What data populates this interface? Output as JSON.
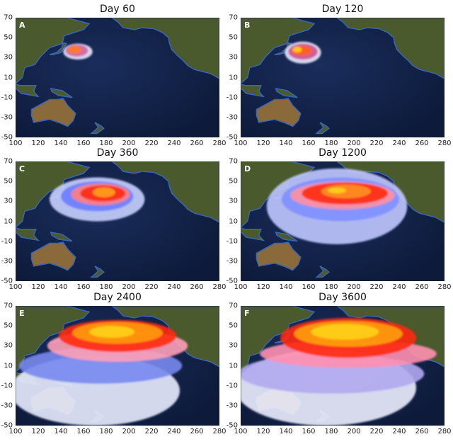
{
  "figure": {
    "panels": [
      {
        "letter": "A",
        "title": "Day 60"
      },
      {
        "letter": "B",
        "title": "Day 120"
      },
      {
        "letter": "C",
        "title": "Day 360"
      },
      {
        "letter": "D",
        "title": "Day 1200"
      },
      {
        "letter": "E",
        "title": "Day 2400"
      },
      {
        "letter": "F",
        "title": "Day 3600"
      }
    ],
    "x_ticks": [
      "100",
      "120",
      "140",
      "160",
      "180",
      "200",
      "220",
      "240",
      "260",
      "280"
    ],
    "y_ticks": [
      "70",
      "50",
      "30",
      "10",
      "-10",
      "-30",
      "-50"
    ],
    "lon_range": [
      100,
      280
    ],
    "lat_range": [
      -50,
      70
    ],
    "colors": {
      "ocean": "#0d1a3a",
      "land": "#4a5a2c",
      "plume_high": "#ffd21a",
      "plume_mid": "#ff2a10",
      "plume_low": "#6a7cff",
      "plume_edge": "#e8e8ff"
    }
  }
}
